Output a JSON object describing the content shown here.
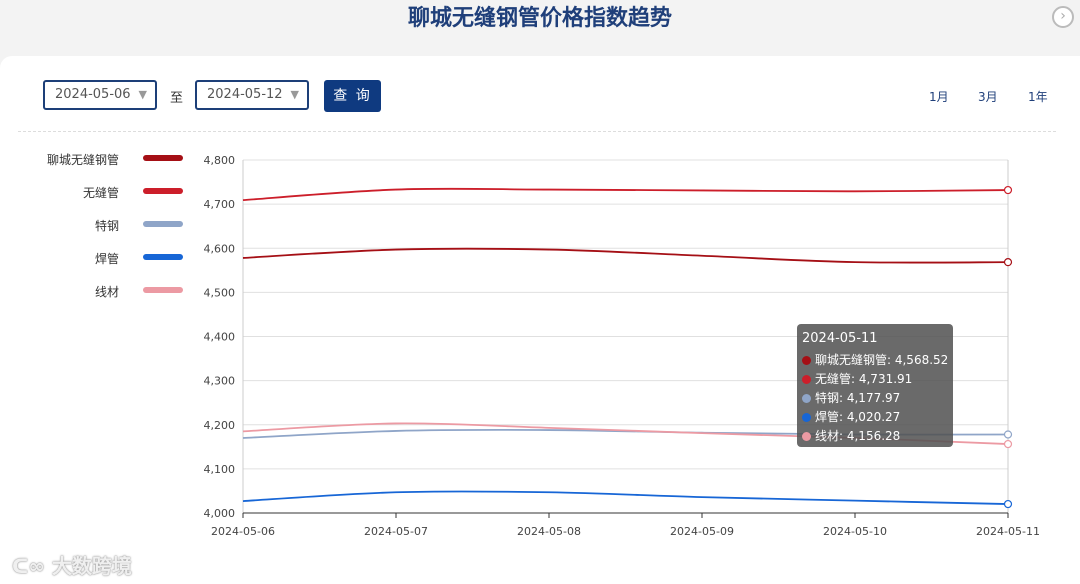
{
  "header": {
    "title": "聊城无缝钢管价格指数趋势",
    "nav_icon": "chevron-right-icon"
  },
  "filters": {
    "start_date": "2024-05-06",
    "separator": "至",
    "end_date": "2024-05-12",
    "query_label": "查 询",
    "ranges": [
      "1月",
      "3月",
      "1年"
    ]
  },
  "watermark": "大数跨境",
  "chart_data": {
    "type": "line",
    "x": [
      "2024-05-06",
      "2024-05-07",
      "2024-05-08",
      "2024-05-09",
      "2024-05-10",
      "2024-05-11"
    ],
    "ylim": [
      4000,
      4800
    ],
    "yticks": [
      "4,800",
      "4,700",
      "4,600",
      "4,500",
      "4,400",
      "4,300",
      "4,200",
      "4,100",
      "4,000"
    ],
    "grid": true,
    "legend_position": "left",
    "series": [
      {
        "name": "聊城无缝钢管",
        "color": "#a50f15",
        "values": [
          4578,
          4597,
          4597,
          4583,
          4568.52,
          4568.52
        ]
      },
      {
        "name": "无缝管",
        "color": "#cc1e2a",
        "values": [
          4709,
          4733,
          4733,
          4731,
          4729,
          4731.91
        ]
      },
      {
        "name": "特钢",
        "color": "#8fa5c8",
        "values": [
          4170,
          4186,
          4188,
          4182,
          4177.97,
          4177.97
        ]
      },
      {
        "name": "焊管",
        "color": "#1766d6",
        "values": [
          4027,
          4047,
          4047,
          4036,
          4028,
          4020.27
        ]
      },
      {
        "name": "线材",
        "color": "#ec9aa3",
        "values": [
          4185,
          4203,
          4193,
          4181,
          4170,
          4156.28
        ]
      }
    ],
    "tooltip": {
      "date": "2024-05-11",
      "rows": [
        "聊城无缝钢管: 4,568.52",
        "无缝管: 4,731.91",
        "特钢: 4,177.97",
        "焊管: 4,020.27",
        "线材: 4,156.28"
      ]
    }
  }
}
